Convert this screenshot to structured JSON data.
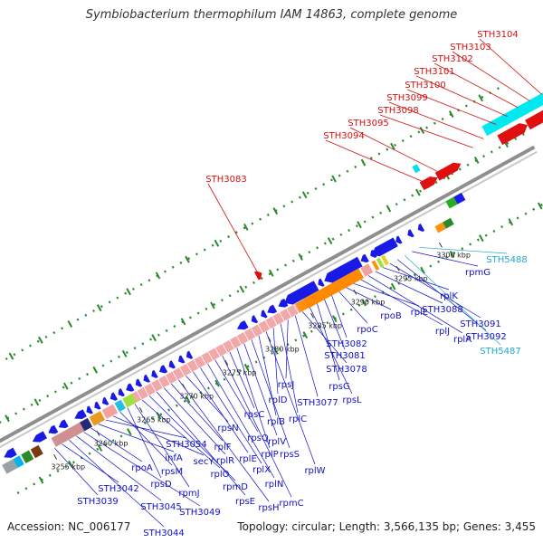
{
  "title": "Symbiobacterium thermophilum IAM 14863, complete genome",
  "accession": "Accession: NC_006177",
  "summary": "Topology: circular; Length: 3,566,135 bp; Genes: 3,455",
  "colors": {
    "forward": "#e01010",
    "reverse": "#1010e0",
    "rna": "#d0d0d0",
    "label_blue": "#1010c8",
    "label_red": "#d01010",
    "label_cyan": "#20a8d0"
  },
  "ticks": [
    "3255 kbp",
    "3260 kbp",
    "3265 kbp",
    "3270 kbp",
    "3275 kbp",
    "3280 kbp",
    "3285 kbp",
    "3290 kbp",
    "3295 kbp",
    "3300 kbp"
  ],
  "top_labels": [
    "STH3104",
    "STH3103",
    "STH3102",
    "STH3101",
    "STH3100",
    "STH3099",
    "STH3098",
    "STH3095",
    "STH3094",
    "STH3083"
  ],
  "bottom_labels": [
    "STH3039",
    "STH3042",
    "STH3044",
    "STH3045",
    "STH3049",
    "rpoA",
    "infA",
    "STH3054",
    "secY",
    "rpsM",
    "rpsD",
    "rpmJ",
    "rplO",
    "rpmD",
    "rpsE",
    "rplR",
    "rplF",
    "rpsH",
    "rpsN",
    "rplE",
    "rplX",
    "rplN",
    "rpsQ",
    "rpmC",
    "rpsC",
    "rplP",
    "rplV",
    "rpsS",
    "rplB",
    "rplW",
    "rplD",
    "rplC",
    "rpsJ",
    "STH3077",
    "STH3078",
    "rpsL",
    "rpsG",
    "STH3081",
    "STH3082",
    "rpoC",
    "rpoB",
    "rplL",
    "rplJ",
    "rplA",
    "STH3088",
    "rplK",
    "STH3091",
    "STH3092",
    "STH5487",
    "rpmG",
    "STH5488"
  ]
}
